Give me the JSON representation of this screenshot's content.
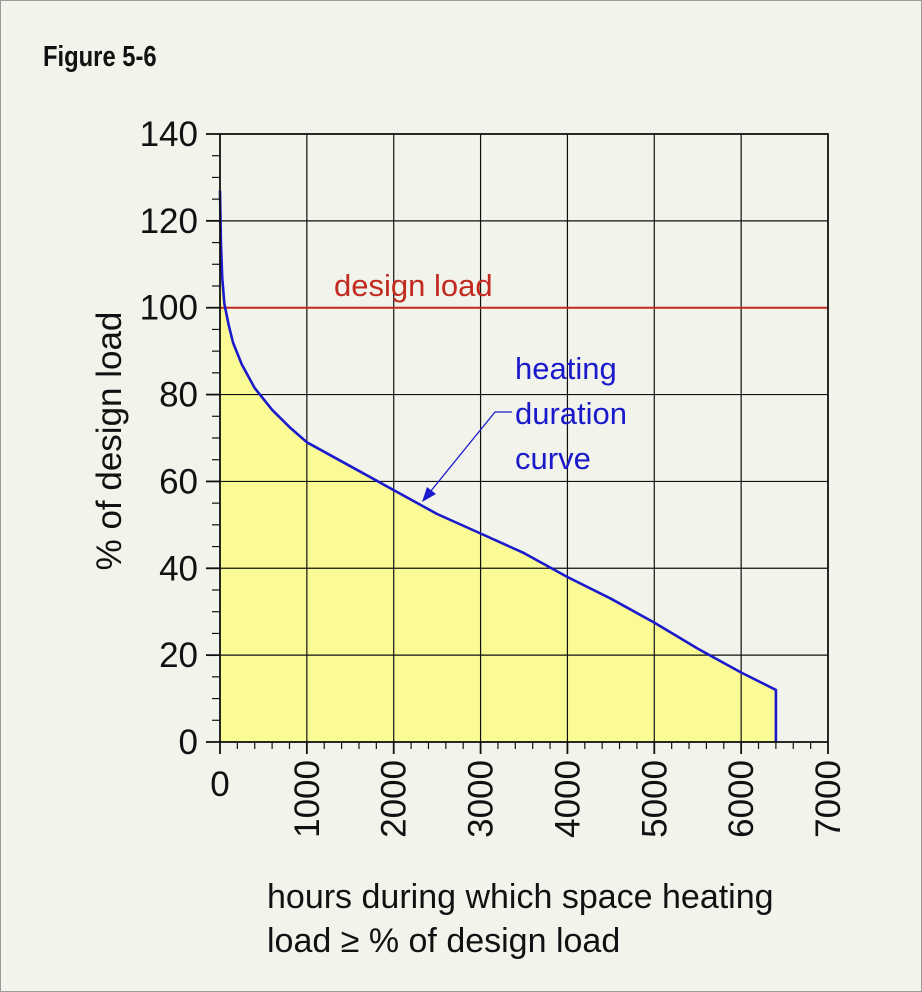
{
  "figure_label": "Figure 5-6",
  "chart_data": {
    "type": "area",
    "xlabel_lines": [
      "hours during which space heating",
      "load ≥ % of design load"
    ],
    "ylabel": "% of design load",
    "xlim": [
      0,
      7000
    ],
    "ylim": [
      0,
      140
    ],
    "x_ticks": [
      0,
      1000,
      2000,
      3000,
      4000,
      5000,
      6000,
      7000
    ],
    "x_tick_labels": [
      "0",
      "1000",
      "2000",
      "3000",
      "4000",
      "5000",
      "6000",
      "7000"
    ],
    "y_ticks": [
      0,
      20,
      40,
      60,
      80,
      100,
      120,
      140
    ],
    "y_tick_labels": [
      "0",
      "20",
      "40",
      "60",
      "80",
      "100",
      "120",
      "140"
    ],
    "grid": true,
    "series": [
      {
        "name": "heating duration curve",
        "color": "#1a1acc",
        "fill": "#fbfb96",
        "x": [
          0,
          10,
          25,
          50,
          100,
          150,
          250,
          400,
          600,
          800,
          1000,
          1500,
          2000,
          2500,
          3000,
          3500,
          4000,
          4500,
          5000,
          5500,
          6000,
          6400,
          6400
        ],
        "y": [
          127,
          115,
          107,
          101,
          96,
          92,
          87,
          81.5,
          76.5,
          72.5,
          69,
          63.5,
          58,
          52.5,
          48,
          43.5,
          38,
          33,
          27.5,
          21.5,
          16,
          12,
          0
        ]
      },
      {
        "name": "design load",
        "color": "#c22a20",
        "x": [
          0,
          7000
        ],
        "y": [
          100,
          100
        ]
      }
    ],
    "annotations": [
      {
        "text": "design load",
        "color": "#c22a20"
      },
      {
        "lines": [
          "heating",
          "duration",
          "curve"
        ],
        "color": "#1a1acc"
      }
    ]
  }
}
